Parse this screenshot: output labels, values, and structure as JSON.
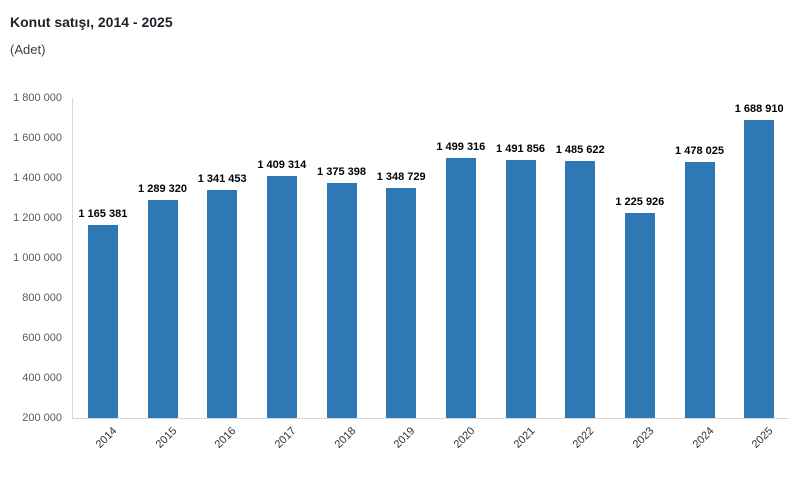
{
  "header": {
    "title": "Konut satışı, 2014 - 2025",
    "subtitle": "(Adet)"
  },
  "chart_data": {
    "type": "bar",
    "title": "Konut satışı, 2014 - 2025",
    "subtitle": "(Adet)",
    "categories": [
      "2014",
      "2015",
      "2016",
      "2017",
      "2018",
      "2019",
      "2020",
      "2021",
      "2022",
      "2023",
      "2024",
      "2025"
    ],
    "values": [
      1165381,
      1289320,
      1341453,
      1409314,
      1375398,
      1348729,
      1499316,
      1491856,
      1485622,
      1225926,
      1478025,
      1688910
    ],
    "value_labels": [
      "1 165 381",
      "1 289 320",
      "1 341 453",
      "1 409 314",
      "1 375 398",
      "1 348 729",
      "1 499 316",
      "1 491 856",
      "1 485 622",
      "1 225 926",
      "1 478 025",
      "1 688 910"
    ],
    "xlabel": "",
    "ylabel": "",
    "ylim": [
      200000,
      1800000
    ],
    "ytick_step": 200000,
    "ytick_labels_top_to_bottom": [
      "1 800 000",
      "1 600 000",
      "1 400 000",
      "1 200 000",
      "1 000 000",
      "800 000",
      "600 000",
      "400 000",
      "200 000"
    ],
    "grid": false,
    "legend": "none",
    "x_tick_rotation_deg": -45
  },
  "colors": {
    "bar": "#2e78b5",
    "title_text": "#1d2129",
    "subtitle_text": "#3f3f3f",
    "axis_text": "#5a5a5a",
    "category_text": "#333333",
    "value_label_text": "#000000",
    "axis_line": "#d9d9d9",
    "background": "#ffffff"
  }
}
